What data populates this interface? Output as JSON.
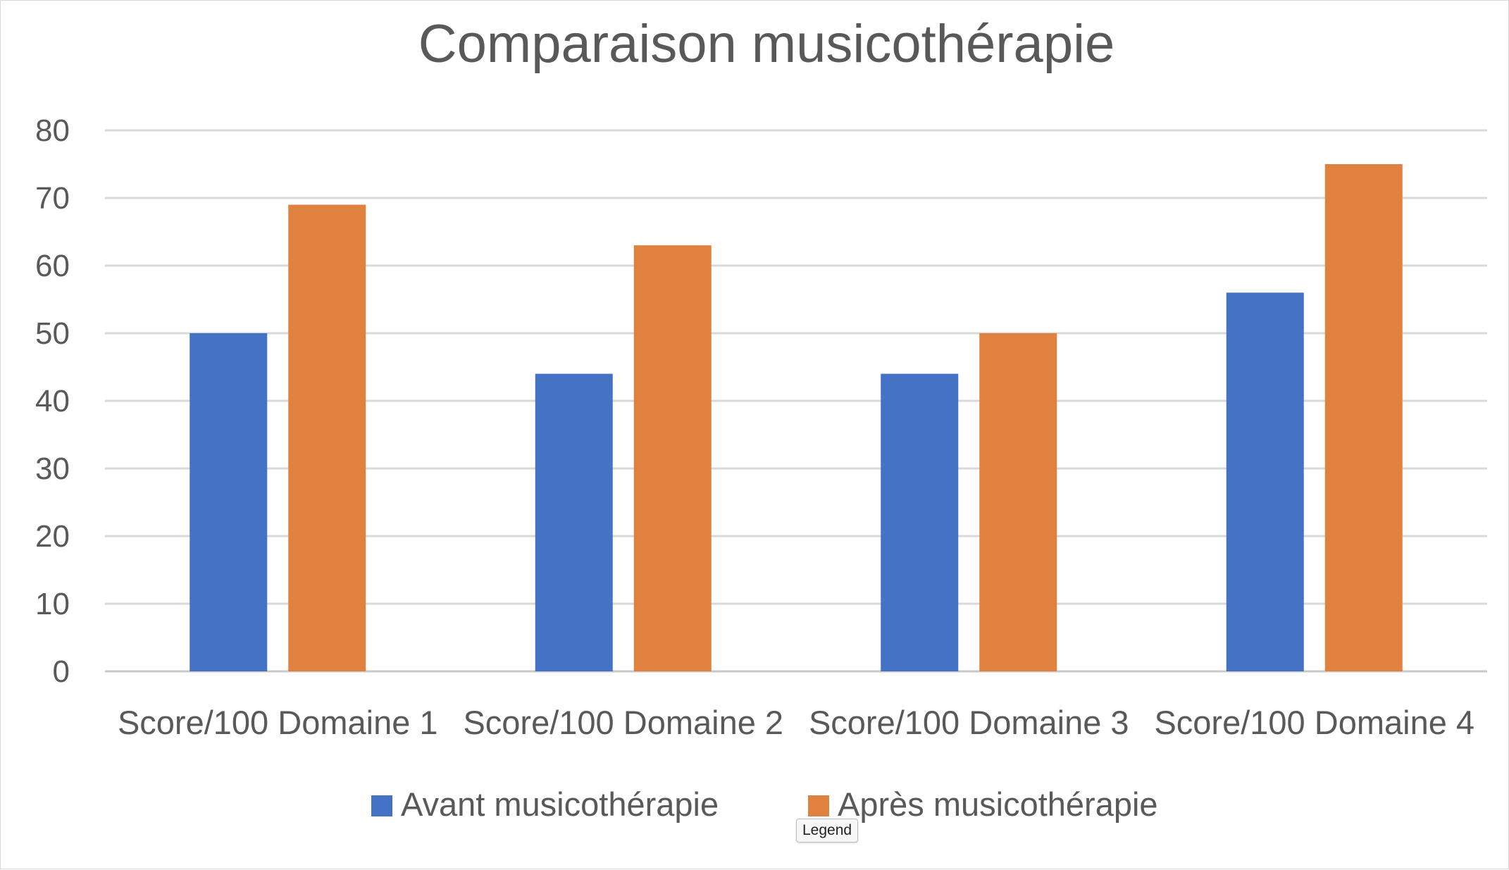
{
  "tooltip": "Legend",
  "chart_data": {
    "type": "bar",
    "title": "Comparaison musicothérapie",
    "categories": [
      "Score/100 Domaine 1",
      "Score/100 Domaine 2",
      "Score/100 Domaine 3",
      "Score/100 Domaine 4"
    ],
    "series": [
      {
        "name": "Avant musicothérapie",
        "values": [
          50,
          44,
          44,
          56
        ],
        "color": "#4472c4"
      },
      {
        "name": "Après musicothérapie",
        "values": [
          69,
          63,
          50,
          75
        ],
        "color": "#e0823f"
      }
    ],
    "yticks": [
      0,
      10,
      20,
      30,
      40,
      50,
      60,
      70,
      80
    ],
    "ylim": [
      0,
      80
    ],
    "grid": true,
    "legend": "bottom",
    "xlabel": "",
    "ylabel": ""
  }
}
